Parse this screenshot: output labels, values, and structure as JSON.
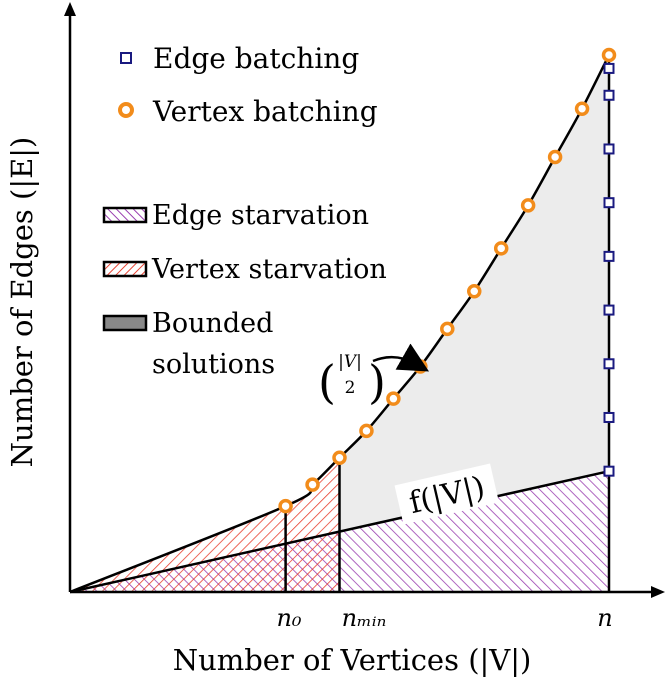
{
  "chart_data": {
    "type": "scatter",
    "xlabel": "Number of Vertices (|V|)",
    "ylabel": "Number of Edges (|E|)",
    "x_ticks": [
      "n₀",
      "nₘᵢₙ",
      "n"
    ],
    "series": [
      {
        "name": "Edge batching",
        "marker": "square",
        "color": "#1a1a80",
        "points": [
          [
            1.0,
            0.225
          ],
          [
            1.0,
            0.325
          ],
          [
            1.0,
            0.425
          ],
          [
            1.0,
            0.525
          ],
          [
            1.0,
            0.625
          ],
          [
            1.0,
            0.725
          ],
          [
            1.0,
            0.825
          ],
          [
            1.0,
            0.925
          ],
          [
            1.0,
            0.975
          ]
        ]
      },
      {
        "name": "Vertex batching",
        "marker": "circle",
        "color": "#f28c1b",
        "points": [
          [
            0.4,
            0.16
          ],
          [
            0.45,
            0.2
          ],
          [
            0.5,
            0.25
          ],
          [
            0.55,
            0.3
          ],
          [
            0.6,
            0.36
          ],
          [
            0.65,
            0.42
          ],
          [
            0.7,
            0.49
          ],
          [
            0.75,
            0.56
          ],
          [
            0.8,
            0.64
          ],
          [
            0.85,
            0.72
          ],
          [
            0.9,
            0.81
          ],
          [
            0.95,
            0.9
          ],
          [
            1.0,
            1.0
          ]
        ]
      }
    ],
    "regions": [
      {
        "name": "Edge starvation",
        "pattern": "purple-hatch"
      },
      {
        "name": "Vertex starvation",
        "pattern": "red-hatch"
      },
      {
        "name": "Bounded solutions",
        "fill": "gray"
      }
    ],
    "annotations": {
      "binomial_label_top": "|V|",
      "binomial_label_bottom": "2",
      "f_label": "f(|V|)"
    },
    "legend": {
      "markers": [
        "Edge batching",
        "Vertex batching"
      ],
      "regions": [
        "Edge starvation",
        "Vertex starvation",
        "Bounded",
        "solutions"
      ]
    },
    "colors": {
      "edge_marker": "#1a1a80",
      "vertex_marker": "#f28c1b",
      "edge_hatch": "#9a3fb0",
      "vertex_hatch": "#e8402f",
      "bounded_fill": "#ececec"
    }
  }
}
